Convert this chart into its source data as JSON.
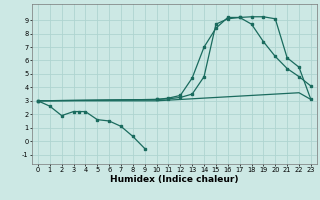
{
  "title": "",
  "xlabel": "Humidex (Indice chaleur)",
  "bg_color": "#cce8e4",
  "grid_color": "#afd4d0",
  "line_color": "#1a6b5e",
  "lines": [
    {
      "x": [
        0,
        1,
        2,
        3,
        3.5,
        4,
        5,
        6,
        7,
        8,
        9
      ],
      "y": [
        3.0,
        2.6,
        1.9,
        2.2,
        2.2,
        2.2,
        1.6,
        1.5,
        1.1,
        0.35,
        -0.55
      ],
      "marker": "s",
      "markersize": 1.8,
      "lw": 0.9
    },
    {
      "x": [
        0,
        10,
        11,
        12,
        13,
        14,
        15,
        16,
        17,
        18,
        19,
        20,
        21,
        22,
        23
      ],
      "y": [
        3.0,
        3.0,
        3.05,
        3.1,
        3.15,
        3.2,
        3.25,
        3.3,
        3.35,
        3.4,
        3.45,
        3.5,
        3.55,
        3.6,
        3.1
      ],
      "marker": null,
      "markersize": 0,
      "lw": 0.9
    },
    {
      "x": [
        0,
        10,
        11,
        12,
        13,
        14,
        15,
        16,
        17,
        18,
        19,
        20,
        21,
        22,
        23
      ],
      "y": [
        3.0,
        3.1,
        3.2,
        3.4,
        4.7,
        7.0,
        8.4,
        9.2,
        9.2,
        8.7,
        7.4,
        6.3,
        5.4,
        4.8,
        4.1
      ],
      "marker": "s",
      "markersize": 1.8,
      "lw": 0.9
    },
    {
      "x": [
        0,
        10,
        11,
        12,
        13,
        14,
        15,
        16,
        17,
        18,
        19,
        20,
        21,
        22,
        23
      ],
      "y": [
        3.0,
        3.1,
        3.15,
        3.25,
        3.5,
        4.8,
        8.7,
        9.1,
        9.2,
        9.25,
        9.25,
        9.1,
        6.2,
        5.5,
        3.1
      ],
      "marker": "s",
      "markersize": 1.8,
      "lw": 0.9
    }
  ],
  "xlim": [
    -0.5,
    23.5
  ],
  "ylim": [
    -1.7,
    10.2
  ],
  "yticks": [
    -1,
    0,
    1,
    2,
    3,
    4,
    5,
    6,
    7,
    8,
    9
  ],
  "xticks": [
    0,
    1,
    2,
    3,
    4,
    5,
    6,
    7,
    8,
    9,
    10,
    11,
    12,
    13,
    14,
    15,
    16,
    17,
    18,
    19,
    20,
    21,
    22,
    23
  ],
  "tick_fontsize": 4.8,
  "label_fontsize": 6.5
}
